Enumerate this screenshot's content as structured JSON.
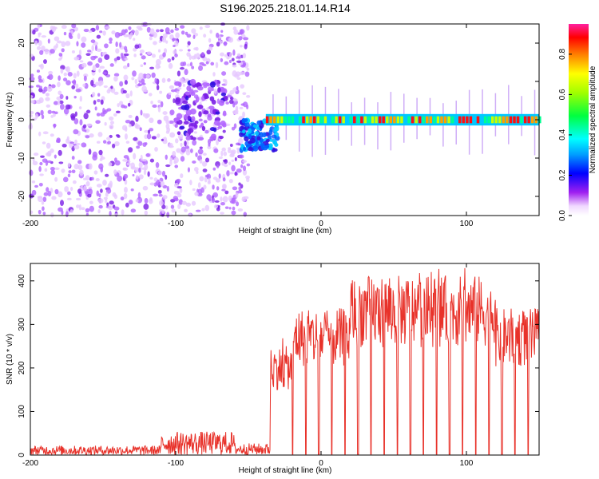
{
  "title": "S196.2025.218.01.14.R14",
  "chart_data": [
    {
      "type": "heatmap",
      "xlabel": "Height of straight line (km)",
      "ylabel": "Frequency (Hz)",
      "xlim": [
        -200,
        150
      ],
      "ylim": [
        -25,
        25
      ],
      "xticks": [
        -200,
        -100,
        0,
        100
      ],
      "yticks": [
        -20,
        -10,
        0,
        10,
        20
      ],
      "colorbar": {
        "label": "Normalized spectral amplitude",
        "range": [
          0,
          0.95
        ],
        "ticks": [
          0.0,
          0.2,
          0.4,
          0.6,
          0.8
        ],
        "tick_labels": [
          "0.0",
          "0.2",
          "0.4",
          "0.6",
          "0.8"
        ]
      },
      "features": [
        {
          "region": "noise",
          "x": [
            -200,
            -50
          ],
          "frequency": [
            -25,
            25
          ],
          "amplitude": 0.1
        },
        {
          "region": "blob",
          "x": [
            -100,
            -65
          ],
          "frequency": [
            -5,
            10
          ],
          "amplitude": 0.15
        },
        {
          "region": "blob",
          "x": [
            -55,
            -30
          ],
          "frequency": [
            -8,
            0
          ],
          "amplitude": 0.35
        },
        {
          "region": "carrier",
          "x": [
            -38,
            150
          ],
          "frequency": [
            -1.5,
            1.5
          ],
          "amplitude": 0.9
        }
      ]
    },
    {
      "type": "line",
      "xlabel": "Height of straight line (km)",
      "ylabel": "SNR (10 * v/v)",
      "xlim": [
        -200,
        150
      ],
      "ylim": [
        0,
        440
      ],
      "xticks": [
        -200,
        -100,
        0,
        100
      ],
      "yticks": [
        0,
        100,
        200,
        300,
        400
      ],
      "series": [
        {
          "color": "#e8322a",
          "segments": [
            {
              "x": [
                -200,
                -110
              ],
              "level": 12
            },
            {
              "x": [
                -110,
                -60
              ],
              "level": 30
            },
            {
              "x": [
                -60,
                -35
              ],
              "level": 15
            },
            {
              "x": [
                -35,
                -20
              ],
              "level": 200
            },
            {
              "x": [
                -20,
                20
              ],
              "level": 270
            },
            {
              "x": [
                20,
                60
              ],
              "level": 330
            },
            {
              "x": [
                60,
                120
              ],
              "level": 330
            },
            {
              "x": [
                120,
                150
              ],
              "level": 270
            }
          ]
        }
      ]
    }
  ]
}
